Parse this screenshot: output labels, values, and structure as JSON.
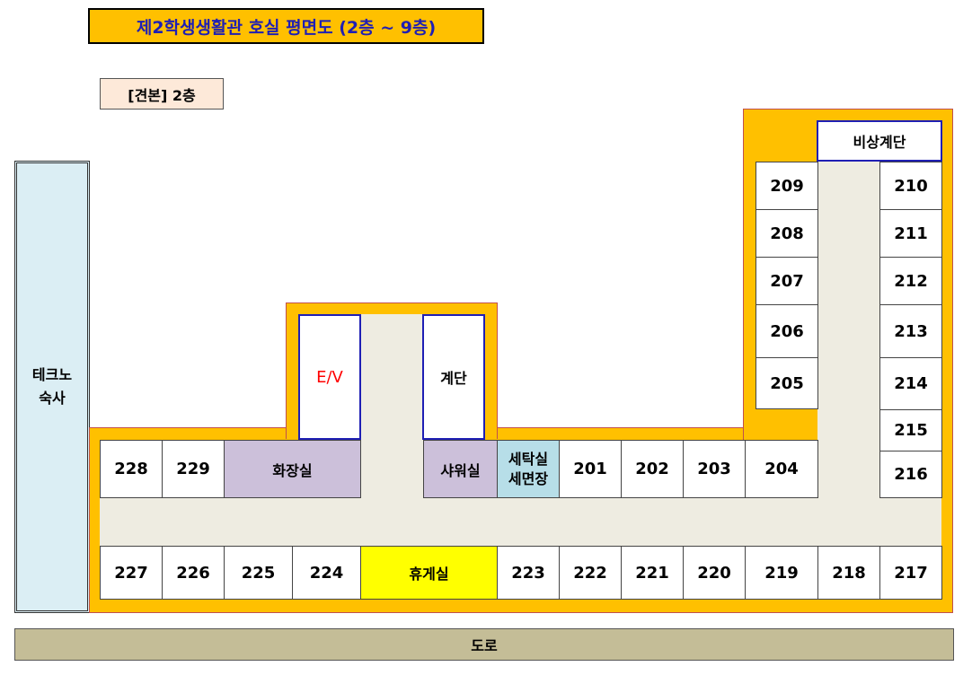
{
  "title": "제2학생생활관 호실 평면도 (2층 ~ 9층)",
  "sample_label": "[견본] 2층",
  "dorm_building": [
    "테크노",
    "숙사"
  ],
  "road": "도로",
  "facilities": {
    "elevator": "E/V",
    "stairs": "계단",
    "emergency_stairs": "비상계단",
    "restroom": "화장실",
    "shower": "샤워실",
    "laundry": [
      "세탁실",
      "세면장"
    ],
    "lounge": "휴게실"
  },
  "rooms_upper_row": [
    "228",
    "229",
    "201",
    "202",
    "203",
    "204"
  ],
  "rooms_lower_row": [
    "227",
    "226",
    "225",
    "224",
    "223",
    "222",
    "221",
    "220",
    "219",
    "218",
    "217"
  ],
  "rooms_right_wing_left": [
    "209",
    "208",
    "207",
    "206",
    "205"
  ],
  "rooms_right_wing_right": [
    "210",
    "211",
    "212",
    "213",
    "214",
    "215",
    "216"
  ],
  "colors": {
    "building": "#ffc000",
    "corridor": "#eeece1",
    "restroom": "#ccc0da",
    "laundry": "#b7dee8",
    "lounge": "#ffff00",
    "dorm": "#dbeef4",
    "road": "#c4bd97",
    "title_text": "#1f1fb4"
  }
}
